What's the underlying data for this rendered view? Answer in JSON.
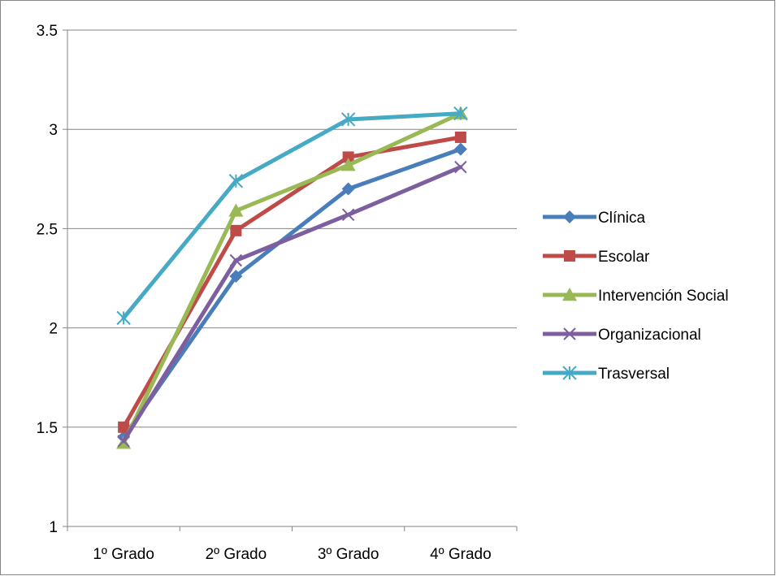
{
  "chart_data": {
    "type": "line",
    "title": "",
    "xlabel": "",
    "ylabel": "",
    "categories": [
      "1º Grado",
      "2º Grado",
      "3º Grado",
      "4º Grado"
    ],
    "ylim": [
      1,
      3.5
    ],
    "yticks": [
      "1",
      "1.5",
      "2",
      "2.5",
      "3",
      "3.5"
    ],
    "ytick_values": [
      1,
      1.5,
      2,
      2.5,
      3,
      3.5
    ],
    "grid": true,
    "legend_position": "right",
    "series": [
      {
        "name": "Clínica",
        "values": [
          1.45,
          2.26,
          2.7,
          2.9
        ],
        "color": "#4A7EBB",
        "marker": "diamond"
      },
      {
        "name": "Escolar",
        "values": [
          1.5,
          2.49,
          2.86,
          2.96
        ],
        "color": "#BE4B48",
        "marker": "square"
      },
      {
        "name": "Intervención Social",
        "values": [
          1.42,
          2.59,
          2.82,
          3.08
        ],
        "color": "#98B954",
        "marker": "triangle"
      },
      {
        "name": "Organizacional",
        "values": [
          1.43,
          2.34,
          2.57,
          2.81
        ],
        "color": "#7D5FA0",
        "marker": "x"
      },
      {
        "name": "Trasversal",
        "values": [
          2.05,
          2.74,
          3.05,
          3.08
        ],
        "color": "#46AAC5",
        "marker": "star"
      }
    ]
  }
}
